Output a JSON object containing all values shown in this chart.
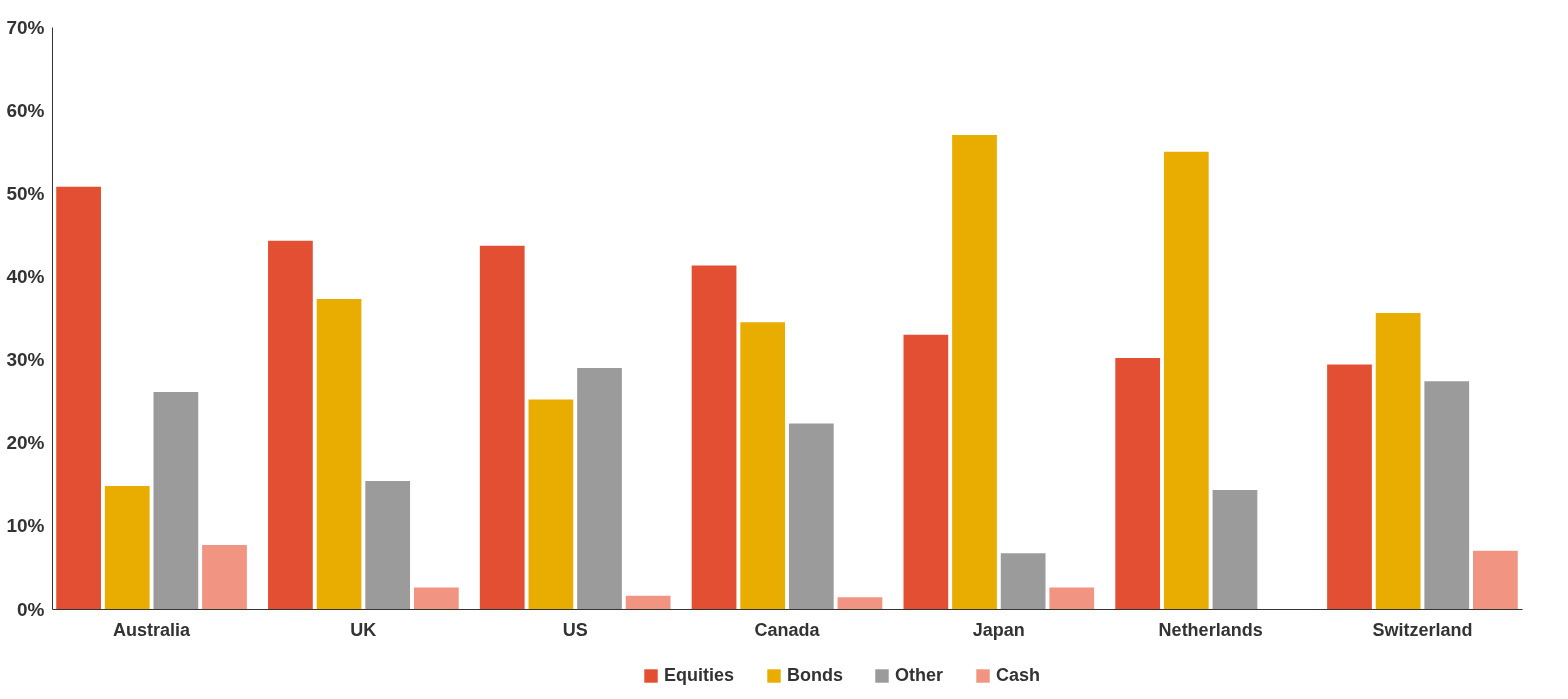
{
  "chart_data": {
    "type": "bar",
    "categories": [
      "Australia",
      "UK",
      "US",
      "Canada",
      "Japan",
      "Netherlands",
      "Switzerland"
    ],
    "series": [
      {
        "name": "Equities",
        "color": "#e34f33",
        "values": [
          50.8,
          44.3,
          43.7,
          41.3,
          33.0,
          30.2,
          29.4
        ]
      },
      {
        "name": "Bonds",
        "color": "#e8ad00",
        "values": [
          14.8,
          37.3,
          25.2,
          34.5,
          57.0,
          55.0,
          35.6
        ]
      },
      {
        "name": "Other",
        "color": "#9b9b9b",
        "values": [
          26.1,
          15.4,
          29.0,
          22.3,
          6.7,
          14.3,
          27.4
        ]
      },
      {
        "name": "Cash",
        "color": "#f19482",
        "values": [
          7.7,
          2.6,
          1.6,
          1.4,
          2.6,
          null,
          7.0
        ]
      }
    ],
    "ylim": [
      0,
      70
    ],
    "yticks": [
      {
        "value": 0,
        "label": "0%"
      },
      {
        "value": 10,
        "label": "10%"
      },
      {
        "value": 20,
        "label": "20%"
      },
      {
        "value": 30,
        "label": "30%"
      },
      {
        "value": 40,
        "label": "40%"
      },
      {
        "value": 50,
        "label": "50%"
      },
      {
        "value": 60,
        "label": "60%"
      },
      {
        "value": 70,
        "label": "70%"
      }
    ],
    "grid": false,
    "legend": "bottom"
  }
}
